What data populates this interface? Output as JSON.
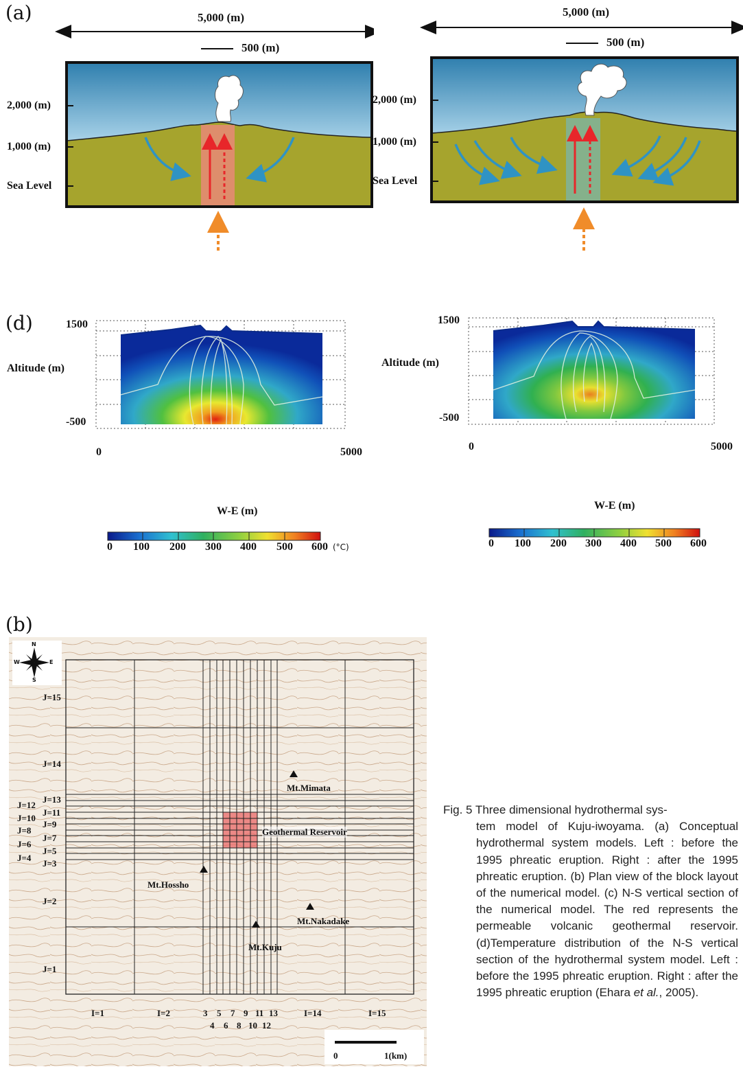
{
  "panels": {
    "a": {
      "label": "(a)",
      "left": {
        "width_label": "5,000 (m)",
        "scale_label": "500 (m)",
        "y_labels": [
          "2,000 (m)",
          "1,000 (m)",
          "Sea Level"
        ]
      },
      "right": {
        "width_label": "5,000 (m)",
        "scale_label": "500 (m)",
        "y_labels": [
          "2,000 (m)",
          "1,000 (m)",
          "Sea Level"
        ]
      }
    },
    "d": {
      "label": "(d)",
      "left": {
        "y_top": "1500",
        "y_bottom": "-500",
        "ylabel": "Altitude (m)",
        "x_min": "0",
        "x_max": "5000",
        "xlabel": "W-E (m)",
        "colorbar_ticks": [
          "0",
          "100",
          "200",
          "300",
          "400",
          "500",
          "600"
        ],
        "colorbar_unit": "(°C)"
      },
      "right": {
        "y_top": "1500",
        "y_bottom": "-500",
        "ylabel": "Altitude (m)",
        "x_min": "0",
        "x_max": "5000",
        "xlabel": "W-E (m)",
        "colorbar_ticks": [
          "0",
          "100",
          "200",
          "300",
          "400",
          "500",
          "600"
        ]
      }
    },
    "b": {
      "label": "(b)",
      "j_labels": [
        "J=15",
        "J=14",
        "J=13",
        "J=12",
        "J=11",
        "J=10",
        "J=9",
        "J=8",
        "J=7",
        "J=6",
        "J=5",
        "J=4",
        "J=3",
        "J=2",
        "J=1"
      ],
      "i_labels_top": [
        "I=1",
        "I=2",
        "3",
        "5",
        "7",
        "9",
        "11",
        "13",
        "I=14",
        "I=15"
      ],
      "i_labels_bottom": [
        "4",
        "6",
        "8",
        "10",
        "12"
      ],
      "places": [
        "Mt.Mimata",
        "Geothermal Reservoir",
        "Mt.Hossho",
        "Mt.Nakadake",
        "Mt.Kuju"
      ],
      "compass": {
        "n": "N",
        "s": "S",
        "e": "E",
        "w": "W"
      },
      "scale": {
        "zero": "0",
        "one": "1(km)"
      }
    }
  },
  "caption": {
    "first_line": "Fig. 5   Three dimensional hydrothermal sys-",
    "rest": "tem model of Kuju-iwoyama.  (a) Conceptual hydrothermal system models. Left : before the 1995 phreatic eruption. Right : after the 1995 phreatic eruption. (b) Plan view of the block layout of the numerical model.  (c) N-S vertical section of the numerical model.  The red represents the permeable volcanic geothermal reservoir.  (d)Temperature distribution of the N-S vertical section of the hydrothermal system model.  Left : before the 1995 phreatic eruption.  Right : after the 1995 phreatic eruption (Ehara",
    "tail_italic": "et al.",
    "tail": ", 2005)."
  },
  "colors": {
    "ground": "#a6a42d",
    "sky_top": "#3a88b2",
    "arrow_blue": "#2f93c4",
    "arrow_red": "#e8262a",
    "arrow_orange": "#f08c2a",
    "reservoir": "#e88080"
  }
}
